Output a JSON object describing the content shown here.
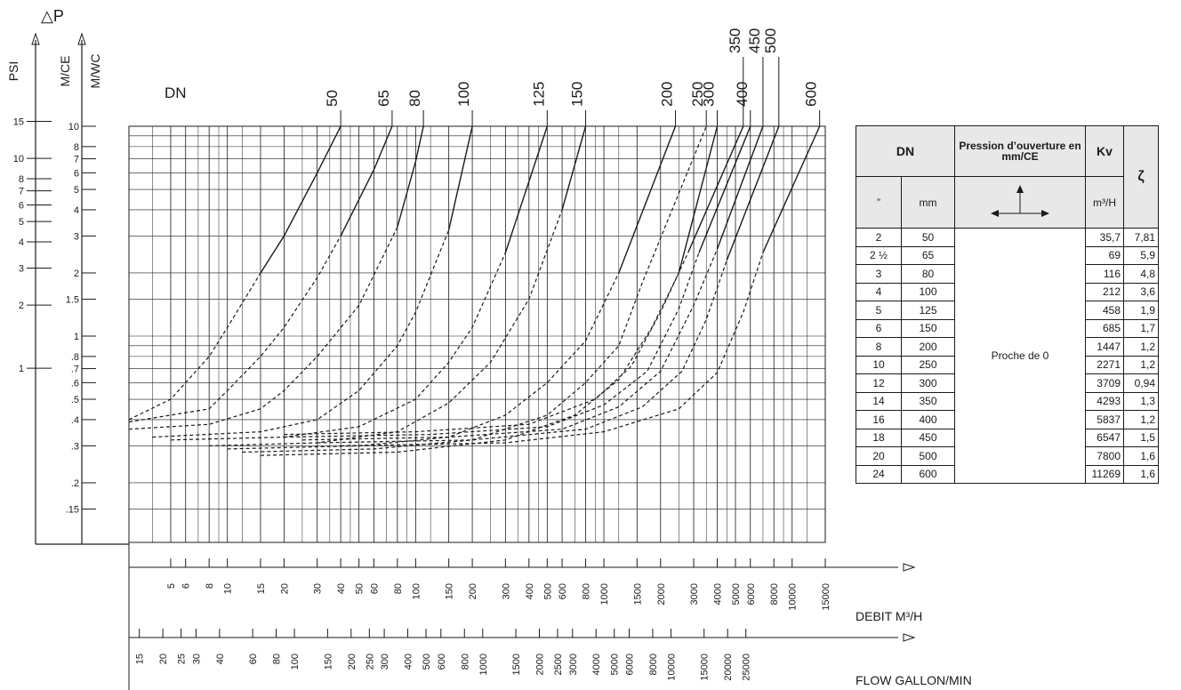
{
  "title": "△P",
  "axes": {
    "psi_label": "PSI",
    "mce_label": "M/CE",
    "mwc_label": "M/WC",
    "dn_label": "DN",
    "flow_m3h_label": "DEBIT  M³/H",
    "flow_gpm_label": "FLOW GALLON/MIN",
    "psi_ticks": [
      "15",
      "10",
      "8",
      "7",
      "6",
      "5",
      "4",
      "3",
      "2",
      "1"
    ],
    "mce_ticks": [
      "10",
      "8",
      "7",
      "6",
      "5",
      "4",
      "3",
      "2",
      "1.5",
      "1",
      ".8",
      ".7",
      ".6",
      ".5",
      ".4",
      ".3",
      ".2",
      ".15"
    ],
    "m3h_ticks": [
      "5",
      "6",
      "8",
      "10",
      "15",
      "20",
      "30",
      "40",
      "50",
      "60",
      "80",
      "100",
      "150",
      "200",
      "300",
      "400",
      "500",
      "600",
      "800",
      "1000",
      "1500",
      "2000",
      "3000",
      "4000",
      "5000",
      "6000",
      "8000",
      "10000",
      "15000"
    ],
    "gpm_ticks": [
      "15",
      "20",
      "25",
      "30",
      "40",
      "60",
      "80",
      "100",
      "150",
      "200",
      "250",
      "300",
      "400",
      "500",
      "600",
      "800",
      "1000",
      "1500",
      "2000",
      "2500",
      "3000",
      "4000",
      "5000",
      "6000",
      "8000",
      "10000",
      "15000",
      "20000",
      "25000"
    ]
  },
  "chart_data": {
    "type": "line",
    "xlabel": "DEBIT  M³/H",
    "ylabel": "M/CE",
    "xscale": "log",
    "yscale": "log",
    "xlim": [
      3,
      15000
    ],
    "ylim": [
      0.1,
      10
    ],
    "grid": true,
    "series": [
      {
        "name": "50",
        "curve": [
          [
            3,
            0.4
          ],
          [
            5,
            0.5
          ],
          [
            8,
            0.8
          ],
          [
            10,
            1.1
          ],
          [
            15,
            2.0
          ],
          [
            20,
            3.0
          ],
          [
            30,
            6.0
          ],
          [
            40,
            10.0
          ]
        ]
      },
      {
        "name": "65",
        "curve": [
          [
            3,
            0.39
          ],
          [
            8,
            0.45
          ],
          [
            10,
            0.55
          ],
          [
            15,
            0.8
          ],
          [
            20,
            1.1
          ],
          [
            30,
            1.9
          ],
          [
            40,
            3.0
          ],
          [
            60,
            6.2
          ],
          [
            75,
            10.0
          ]
        ]
      },
      {
        "name": "80",
        "curve": [
          [
            3,
            0.36
          ],
          [
            8,
            0.38
          ],
          [
            15,
            0.45
          ],
          [
            20,
            0.55
          ],
          [
            30,
            0.8
          ],
          [
            50,
            1.4
          ],
          [
            80,
            3.3
          ],
          [
            100,
            6.8
          ],
          [
            110,
            10.0
          ]
        ]
      },
      {
        "name": "100",
        "curve": [
          [
            4,
            0.33
          ],
          [
            15,
            0.35
          ],
          [
            30,
            0.4
          ],
          [
            50,
            0.55
          ],
          [
            80,
            0.9
          ],
          [
            100,
            1.3
          ],
          [
            150,
            3.2
          ],
          [
            200,
            10.0
          ]
        ]
      },
      {
        "name": "125",
        "curve": [
          [
            5,
            0.32
          ],
          [
            20,
            0.33
          ],
          [
            50,
            0.37
          ],
          [
            100,
            0.5
          ],
          [
            150,
            0.75
          ],
          [
            200,
            1.1
          ],
          [
            300,
            2.5
          ],
          [
            500,
            10.0
          ]
        ]
      },
      {
        "name": "150",
        "curve": [
          [
            8,
            0.3
          ],
          [
            30,
            0.31
          ],
          [
            80,
            0.35
          ],
          [
            150,
            0.48
          ],
          [
            250,
            0.75
          ],
          [
            400,
            1.5
          ],
          [
            600,
            4.0
          ],
          [
            800,
            10.0
          ]
        ]
      },
      {
        "name": "200",
        "curve": [
          [
            10,
            0.29
          ],
          [
            50,
            0.3
          ],
          [
            150,
            0.33
          ],
          [
            300,
            0.42
          ],
          [
            500,
            0.6
          ],
          [
            800,
            0.95
          ],
          [
            1200,
            2.0
          ],
          [
            2400,
            10.0
          ]
        ]
      },
      {
        "name": "250",
        "curve": [
          [
            12,
            0.28
          ],
          [
            60,
            0.29
          ],
          [
            200,
            0.32
          ],
          [
            500,
            0.42
          ],
          [
            800,
            0.6
          ],
          [
            1200,
            0.9
          ],
          [
            1600,
            1.8
          ],
          [
            3500,
            10.0
          ]
        ]
      },
      {
        "name": "300",
        "curve": [
          [
            15,
            0.27
          ],
          [
            80,
            0.28
          ],
          [
            300,
            0.32
          ],
          [
            700,
            0.42
          ],
          [
            1200,
            0.62
          ],
          [
            1800,
            1.1
          ],
          [
            2500,
            2.0
          ],
          [
            4000,
            10.0
          ]
        ]
      },
      {
        "name": "350",
        "curve": [
          [
            20,
            0.34
          ],
          [
            100,
            0.35
          ],
          [
            400,
            0.38
          ],
          [
            900,
            0.5
          ],
          [
            1400,
            0.72
          ],
          [
            2000,
            1.3
          ],
          [
            2800,
            2.5
          ],
          [
            5500,
            10.0
          ]
        ]
      },
      {
        "name": "400",
        "curve": [
          [
            20,
            0.33
          ],
          [
            120,
            0.34
          ],
          [
            500,
            0.37
          ],
          [
            1000,
            0.47
          ],
          [
            1700,
            0.68
          ],
          [
            2500,
            1.35
          ],
          [
            3200,
            2.5
          ],
          [
            6000,
            10.0
          ]
        ]
      },
      {
        "name": "450",
        "curve": [
          [
            25,
            0.32
          ],
          [
            150,
            0.33
          ],
          [
            600,
            0.36
          ],
          [
            1200,
            0.46
          ],
          [
            2000,
            0.68
          ],
          [
            3000,
            1.4
          ],
          [
            4000,
            2.6
          ],
          [
            7000,
            10.0
          ]
        ]
      },
      {
        "name": "500",
        "curve": [
          [
            30,
            0.31
          ],
          [
            200,
            0.32
          ],
          [
            800,
            0.36
          ],
          [
            1600,
            0.46
          ],
          [
            2600,
            0.68
          ],
          [
            3500,
            1.2
          ],
          [
            4500,
            2.3
          ],
          [
            8500,
            10.0
          ]
        ]
      },
      {
        "name": "600",
        "curve": [
          [
            40,
            0.3
          ],
          [
            300,
            0.31
          ],
          [
            1000,
            0.35
          ],
          [
            2500,
            0.45
          ],
          [
            4000,
            0.67
          ],
          [
            5500,
            1.3
          ],
          [
            7000,
            2.5
          ],
          [
            14000,
            10.0
          ]
        ]
      }
    ]
  },
  "table": {
    "head_dn": "DN",
    "head_pression": "Pression d’ouverture en mm/CE",
    "head_kv": "Kv",
    "head_zeta": "ζ",
    "sub_inch": "”",
    "sub_mm": "mm",
    "sub_kv_unit": "m³/H",
    "pression_value": "Proche de 0",
    "rows": [
      {
        "inch": "2",
        "mm": "50",
        "kv": "35,7",
        "zeta": "7,81"
      },
      {
        "inch": "2 ½",
        "mm": "65",
        "kv": "69",
        "zeta": "5,9"
      },
      {
        "inch": "3",
        "mm": "80",
        "kv": "116",
        "zeta": "4,8"
      },
      {
        "inch": "4",
        "mm": "100",
        "kv": "212",
        "zeta": "3,6"
      },
      {
        "inch": "5",
        "mm": "125",
        "kv": "458",
        "zeta": "1,9"
      },
      {
        "inch": "6",
        "mm": "150",
        "kv": "685",
        "zeta": "1,7"
      },
      {
        "inch": "8",
        "mm": "200",
        "kv": "1447",
        "zeta": "1,2"
      },
      {
        "inch": "10",
        "mm": "250",
        "kv": "2271",
        "zeta": "1,2"
      },
      {
        "inch": "12",
        "mm": "300",
        "kv": "3709",
        "zeta": "0,94"
      },
      {
        "inch": "14",
        "mm": "350",
        "kv": "4293",
        "zeta": "1,3"
      },
      {
        "inch": "16",
        "mm": "400",
        "kv": "5837",
        "zeta": "1,2"
      },
      {
        "inch": "18",
        "mm": "450",
        "kv": "6547",
        "zeta": "1,5"
      },
      {
        "inch": "20",
        "mm": "500",
        "kv": "7800",
        "zeta": "1,6"
      },
      {
        "inch": "24",
        "mm": "600",
        "kv": "11269",
        "zeta": "1,6"
      }
    ]
  },
  "colors": {
    "ink": "#1a1a1a",
    "header_bg": "#e8e8e8"
  }
}
